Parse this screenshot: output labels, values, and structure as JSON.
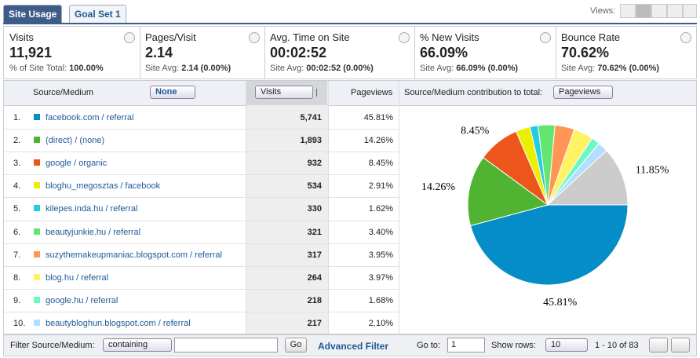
{
  "tabs": [
    "Site Usage",
    "Goal Set 1"
  ],
  "views_label": "Views:",
  "metrics": [
    {
      "title": "Visits",
      "value": "11,921",
      "sub_label": "% of Site Total:",
      "sub_value": "100.00%"
    },
    {
      "title": "Pages/Visit",
      "value": "2.14",
      "sub_label": "Site Avg:",
      "sub_value": "2.14 (0.00%)"
    },
    {
      "title": "Avg. Time on Site",
      "value": "00:02:52",
      "sub_label": "Site Avg:",
      "sub_value": "00:02:52 (0.00%)"
    },
    {
      "title": "% New Visits",
      "value": "66.09%",
      "sub_label": "Site Avg:",
      "sub_value": "66.09% (0.00%)"
    },
    {
      "title": "Bounce Rate",
      "value": "70.62%",
      "sub_label": "Site Avg:",
      "sub_value": "70.62% (0.00%)"
    }
  ],
  "table": {
    "headers": {
      "source": "Source/Medium",
      "segment": "None",
      "sort": "Visits",
      "pageviews": "Pageviews",
      "contribution": "Source/Medium contribution to total:",
      "contribution_metric": "Pageviews"
    },
    "rows": [
      {
        "index": "1.",
        "source": "facebook.com / referral",
        "visits": "5,741",
        "pageviews": "45.81%"
      },
      {
        "index": "2.",
        "source": "(direct) / (none)",
        "visits": "1,893",
        "pageviews": "14.26%"
      },
      {
        "index": "3.",
        "source": "google / organic",
        "visits": "932",
        "pageviews": "8.45%"
      },
      {
        "index": "4.",
        "source": "bloghu_megosztas / facebook",
        "visits": "534",
        "pageviews": "2.91%"
      },
      {
        "index": "5.",
        "source": "kilepes.inda.hu / referral",
        "visits": "330",
        "pageviews": "1.62%"
      },
      {
        "index": "6.",
        "source": "beautyjunkie.hu / referral",
        "visits": "321",
        "pageviews": "3.40%"
      },
      {
        "index": "7.",
        "source": "suzythemakeupmaniac.blogspot.com / referral",
        "visits": "317",
        "pageviews": "3.95%"
      },
      {
        "index": "8.",
        "source": "blog.hu / referral",
        "visits": "264",
        "pageviews": "3.97%"
      },
      {
        "index": "9.",
        "source": "google.hu / referral",
        "visits": "218",
        "pageviews": "1.68%"
      },
      {
        "index": "10.",
        "source": "beautybloghun.blogspot.com / referral",
        "visits": "217",
        "pageviews": "2.10%"
      }
    ]
  },
  "footer": {
    "filter_label": "Filter Source/Medium:",
    "filter_mode": "containing",
    "go": "Go",
    "advanced": "Advanced Filter",
    "goto_label": "Go to:",
    "goto_value": "1",
    "rows_label": "Show rows:",
    "rows_value": "10",
    "range": "1 - 10 of 83"
  },
  "chart_data": {
    "type": "pie",
    "values": [
      45.81,
      14.26,
      8.45,
      2.91,
      1.62,
      3.4,
      3.95,
      3.97,
      1.68,
      2.1,
      11.85
    ],
    "value_labels": [
      "45.81%",
      "14.26%",
      "8.45%",
      null,
      null,
      null,
      null,
      null,
      null,
      null,
      "11.85%"
    ],
    "colors": [
      "#058dc7",
      "#50b432",
      "#ed561b",
      "#edef00",
      "#24cbe5",
      "#64e572",
      "#ff9655",
      "#fff263",
      "#6af9c4",
      "#b2deff",
      "#cccccc"
    ]
  }
}
